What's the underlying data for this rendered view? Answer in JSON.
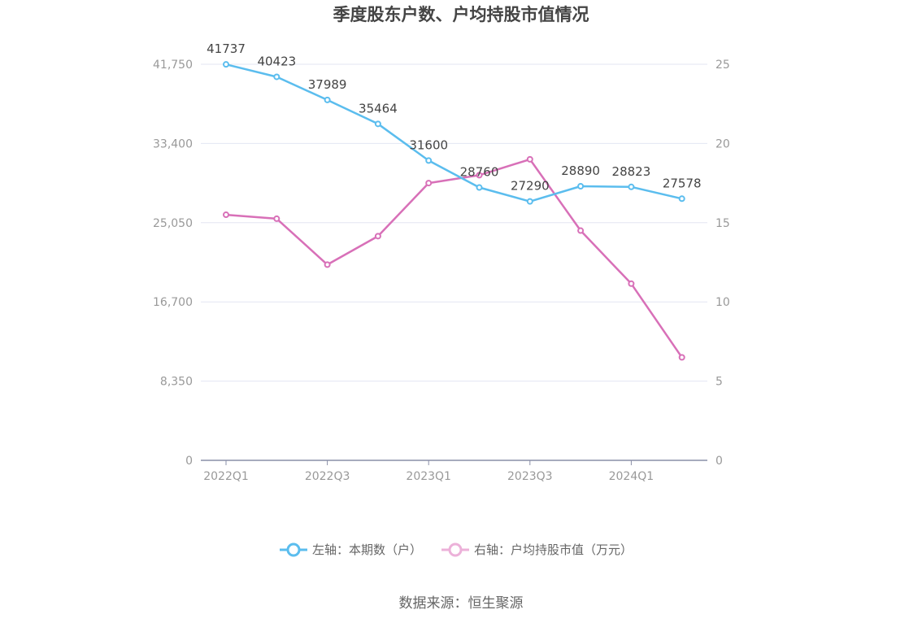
{
  "chart_data": {
    "type": "line",
    "title": "季度股东户数、户均持股市值情况",
    "categories": [
      "2022Q1",
      "2022Q2",
      "2022Q3",
      "2022Q4",
      "2023Q1",
      "2023Q2",
      "2023Q3",
      "2023Q4",
      "2024Q1",
      "2024Q2"
    ],
    "x_tick_labels": [
      "2022Q1",
      "2022Q3",
      "2023Q1",
      "2023Q3",
      "2024Q1"
    ],
    "left_axis": {
      "ylim": [
        0,
        41750
      ],
      "ticks": [
        0,
        8350,
        16700,
        25050,
        33400,
        41750
      ],
      "tick_labels": [
        "0",
        "8,350",
        "16,700",
        "25,050",
        "33,400",
        "41,750"
      ]
    },
    "right_axis": {
      "ylim": [
        0,
        25
      ],
      "ticks": [
        0,
        5,
        10,
        15,
        20,
        25
      ],
      "tick_labels": [
        "0",
        "5",
        "10",
        "15",
        "20",
        "25"
      ]
    },
    "series": [
      {
        "name": "左轴：本期数（户）",
        "axis": "left",
        "color": "#5bbdee",
        "values": [
          41737,
          40423,
          37989,
          35464,
          31600,
          28760,
          27290,
          28890,
          28823,
          27578
        ],
        "labels": [
          "41737",
          "40423",
          "37989",
          "35464",
          "31600",
          "28760",
          "27290",
          "28890",
          "28823",
          "27578"
        ]
      },
      {
        "name": "右轴：户均持股市值（万元）",
        "axis": "right",
        "color": "#d870b8",
        "values": [
          15.5,
          15.25,
          12.35,
          14.15,
          17.5,
          18.0,
          19.0,
          14.5,
          11.15,
          6.5
        ]
      }
    ],
    "grid": true,
    "legend_position": "bottom-center",
    "source": "数据来源：恒生聚源"
  }
}
